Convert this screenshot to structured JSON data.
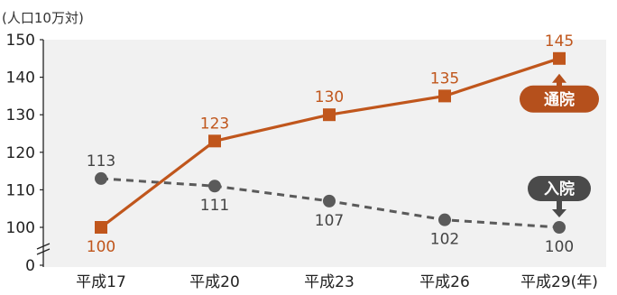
{
  "chart_data": {
    "type": "line",
    "unit_label": "(人口10万対)",
    "categories": [
      "平成17",
      "平成20",
      "平成23",
      "平成26",
      "平成29(年)"
    ],
    "ylim": [
      0,
      150
    ],
    "yticks": [
      0,
      100,
      110,
      120,
      130,
      140,
      150
    ],
    "axis_break": true,
    "grid": false,
    "series": [
      {
        "name": "通院",
        "values": [
          100,
          123,
          130,
          135,
          145
        ],
        "color": "#c0561c",
        "line_style": "solid",
        "marker": "square",
        "label_position": [
          "below",
          "above",
          "above",
          "above",
          "above"
        ]
      },
      {
        "name": "入院",
        "values": [
          113,
          111,
          107,
          102,
          100
        ],
        "color": "#5a5a5a",
        "line_style": "dashed",
        "marker": "circle",
        "label_position": [
          "above",
          "below",
          "below",
          "below",
          "below"
        ]
      }
    ],
    "annotations": [
      {
        "text": "通院",
        "series": 0,
        "badge_color": "#b5501c",
        "arrow": "up"
      },
      {
        "text": "入院",
        "series": 1,
        "badge_color": "#4a4a4a",
        "arrow": "down"
      }
    ]
  }
}
